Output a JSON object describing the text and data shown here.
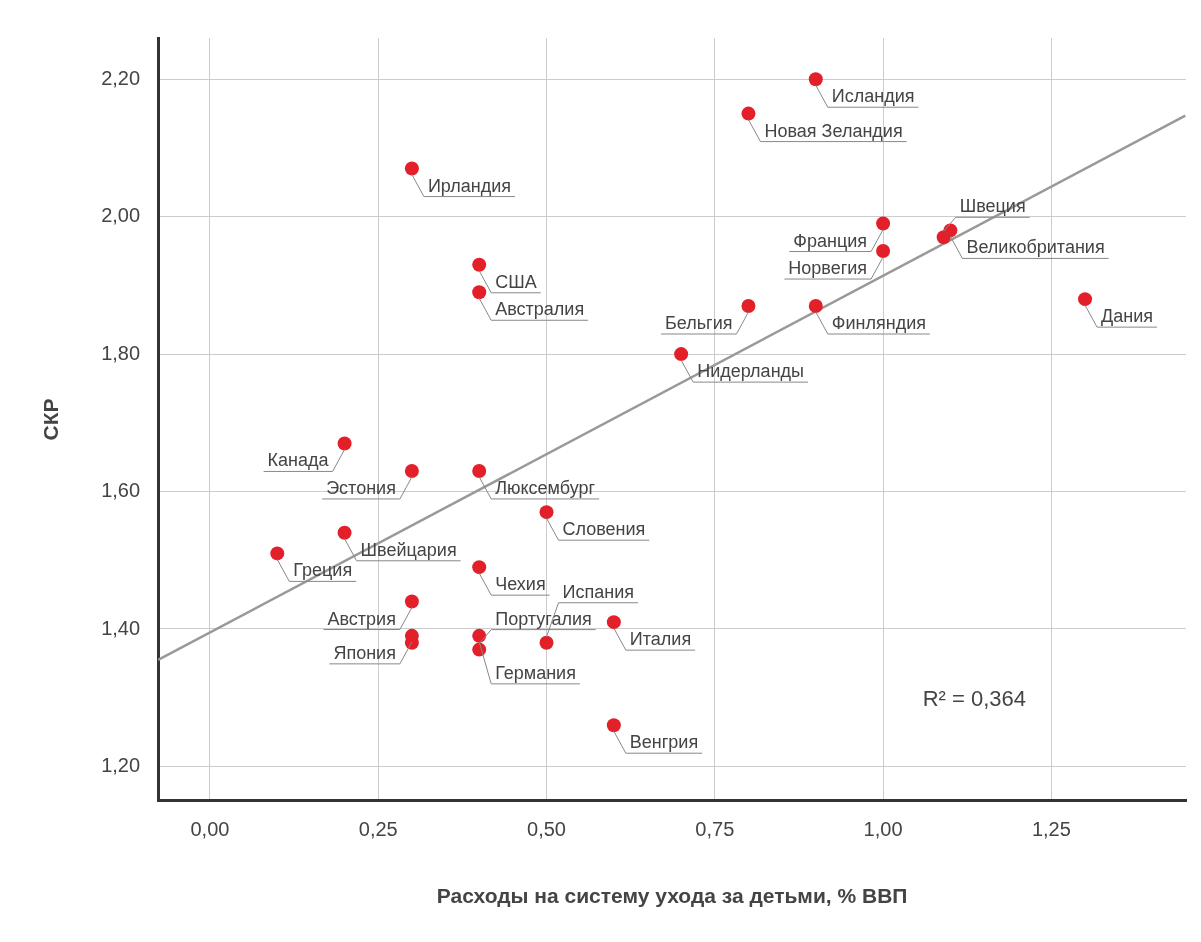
{
  "chart_data": {
    "type": "scatter",
    "xlabel": "Расходы на систему ухода за детьми, % ВВП",
    "ylabel": "СКР",
    "xlim": [
      -0.077,
      1.45
    ],
    "ylim": [
      1.15,
      2.26
    ],
    "xticks": [
      {
        "value": 0,
        "label": "0,00"
      },
      {
        "value": 0.25,
        "label": "0,25"
      },
      {
        "value": 0.5,
        "label": "0,50"
      },
      {
        "value": 0.75,
        "label": "0,75"
      },
      {
        "value": 1,
        "label": "1,00"
      },
      {
        "value": 1.25,
        "label": "1,25"
      }
    ],
    "yticks": [
      {
        "value": 1.2,
        "label": "1,20"
      },
      {
        "value": 1.4,
        "label": "1,40"
      },
      {
        "value": 1.6,
        "label": "1,60"
      },
      {
        "value": 1.8,
        "label": "1,80"
      },
      {
        "value": 2,
        "label": "2,00"
      },
      {
        "value": 2.2,
        "label": "2,20"
      }
    ],
    "grid": true,
    "legend": false,
    "series": [
      {
        "type": "scatter",
        "color": "#e3202a",
        "marker": "circle",
        "x": [
          0.9,
          0.8,
          0.3,
          1.0,
          1.1,
          1.09,
          0.4,
          1.0,
          0.4,
          0.8,
          0.9,
          1.3,
          0.7,
          0.2,
          0.3,
          0.4,
          0.5,
          0.2,
          0.1,
          0.4,
          0.3,
          0.3,
          0.3,
          0.4,
          0.4,
          0.5,
          0.6,
          0.6
        ],
        "values": [
          2.2,
          2.15,
          2.07,
          1.99,
          1.98,
          1.97,
          1.93,
          1.95,
          1.89,
          1.87,
          1.87,
          1.88,
          1.8,
          1.67,
          1.63,
          1.63,
          1.57,
          1.54,
          1.51,
          1.49,
          1.44,
          1.39,
          1.38,
          1.39,
          1.37,
          1.38,
          1.41,
          1.26
        ]
      },
      {
        "type": "line",
        "color": "#999999",
        "marker": "none",
        "line_style": "solid",
        "x": [
          -0.077,
          1.449
        ],
        "values": [
          1.355,
          2.147
        ]
      }
    ],
    "annotations": [
      {
        "text": "Исландия",
        "x": 0.9,
        "y": 2.2
      },
      {
        "text": "Новая Зеландия",
        "x": 0.8,
        "y": 2.15
      },
      {
        "text": "Ирландия",
        "x": 0.3,
        "y": 2.07
      },
      {
        "text": "Франция",
        "x": 1.0,
        "y": 1.99
      },
      {
        "text": "Великобритания",
        "x": 1.1,
        "y": 1.98
      },
      {
        "text": "Швеция",
        "x": 1.09,
        "y": 1.97
      },
      {
        "text": "США",
        "x": 0.4,
        "y": 1.93
      },
      {
        "text": "Норвегия",
        "x": 1.0,
        "y": 1.95
      },
      {
        "text": "Австралия",
        "x": 0.4,
        "y": 1.89
      },
      {
        "text": "Бельгия",
        "x": 0.8,
        "y": 1.87
      },
      {
        "text": "Финляндия",
        "x": 0.9,
        "y": 1.87
      },
      {
        "text": "Дания",
        "x": 1.3,
        "y": 1.88
      },
      {
        "text": "Нидерланды",
        "x": 0.7,
        "y": 1.8
      },
      {
        "text": "Канада",
        "x": 0.2,
        "y": 1.67
      },
      {
        "text": "Эстония",
        "x": 0.3,
        "y": 1.63
      },
      {
        "text": "Люксембург",
        "x": 0.4,
        "y": 1.63
      },
      {
        "text": "Словения",
        "x": 0.5,
        "y": 1.57
      },
      {
        "text": "Швейцария",
        "x": 0.2,
        "y": 1.54
      },
      {
        "text": "Греция",
        "x": 0.1,
        "y": 1.51
      },
      {
        "text": "Чехия",
        "x": 0.4,
        "y": 1.49
      },
      {
        "text": "Австрия",
        "x": 0.3,
        "y": 1.44
      },
      {
        "text": "Япония",
        "x": 0.3,
        "y": 1.39
      },
      {
        "text": "Германия",
        "x": 0.4,
        "y": 1.39
      },
      {
        "text": "Португалия",
        "x": 0.4,
        "y": 1.37
      },
      {
        "text": "Испания",
        "x": 0.5,
        "y": 1.38
      },
      {
        "text": "Италия",
        "x": 0.6,
        "y": 1.41
      },
      {
        "text": "Венгрия",
        "x": 0.6,
        "y": 1.26
      },
      "R² = 0,364"
    ]
  }
}
